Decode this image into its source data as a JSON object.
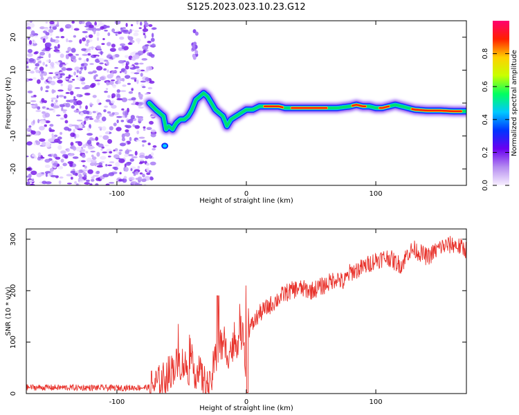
{
  "title": "S125.2023.023.10.23.G12",
  "colors": {
    "snr_line": "#e8312a",
    "spectrogram_noise": "#7a1fe8",
    "colorbar_stops": [
      "#f8f0ff",
      "#b58cf0",
      "#6a00f0",
      "#0033ff",
      "#00c8ff",
      "#00ff60",
      "#c8ff00",
      "#ffd000",
      "#ff2000",
      "#ff0070"
    ]
  },
  "chart_data": [
    {
      "type": "heatmap",
      "name": "spectrogram",
      "xlabel": "Height of straight line (km)",
      "ylabel": "Frequency (Hz)",
      "xlim": [
        -170,
        170
      ],
      "ylim": [
        -25,
        25
      ],
      "xticks": [
        -100,
        0,
        100
      ],
      "yticks": [
        -20,
        -10,
        0,
        10,
        20
      ],
      "colorbar": {
        "label": "Normalized spectral amplitude",
        "range": [
          0,
          1
        ],
        "ticks": [
          0.0,
          0.2,
          0.4,
          0.6,
          0.8
        ]
      },
      "noise_region_x": [
        -170,
        -75
      ],
      "ridge": {
        "x": [
          -75,
          -70,
          -67,
          -64,
          -62,
          -60,
          -57,
          -54,
          -51,
          -48,
          -45,
          -42,
          -39,
          -36,
          -33,
          -30,
          -27,
          -24,
          -21,
          -18,
          -15,
          -12,
          -8,
          -4,
          0,
          5,
          10,
          15,
          20,
          25,
          30,
          40,
          50,
          60,
          70,
          80,
          85,
          90,
          95,
          100,
          105,
          110,
          115,
          120,
          125,
          130,
          140,
          150,
          160,
          170
        ],
        "y": [
          0,
          -2,
          -3,
          -4,
          -8,
          -7,
          -8,
          -6,
          -5,
          -5,
          -4,
          -2,
          1,
          2,
          3,
          2,
          0,
          -2,
          -3,
          -4,
          -7,
          -5,
          -4,
          -3,
          -2,
          -2,
          -1,
          -1,
          -1,
          -1,
          -1.5,
          -1.5,
          -1.5,
          -1.5,
          -1.5,
          -1,
          -0.5,
          -1,
          -1,
          -1.5,
          -1.5,
          -1,
          -0.5,
          -1,
          -1.5,
          -2,
          -2.3,
          -2.3,
          -2.5,
          -2.5
        ]
      }
    },
    {
      "type": "line",
      "name": "snr",
      "xlabel": "Height of straight line (km)",
      "ylabel": "SNR (10 * v/v)",
      "xlim": [
        -170,
        170
      ],
      "ylim": [
        0,
        320
      ],
      "xticks": [
        -100,
        0,
        100
      ],
      "yticks": [
        0,
        100,
        200,
        300
      ],
      "trend": {
        "x": [
          -170,
          -100,
          -75,
          -65,
          -60,
          -55,
          -50,
          -45,
          -40,
          -35,
          -32,
          -28,
          -25,
          -20,
          -15,
          -10,
          -5,
          -2,
          0,
          2,
          5,
          10,
          20,
          30,
          40,
          50,
          60,
          70,
          75,
          80,
          85,
          90,
          100,
          110,
          115,
          120,
          125,
          130,
          140,
          150,
          160,
          170
        ],
        "y": [
          12,
          11,
          12,
          25,
          40,
          55,
          60,
          50,
          45,
          35,
          20,
          8,
          60,
          95,
          80,
          90,
          115,
          120,
          25,
          125,
          135,
          155,
          175,
          195,
          205,
          200,
          210,
          225,
          215,
          235,
          240,
          245,
          260,
          265,
          255,
          250,
          275,
          280,
          265,
          285,
          290,
          280
        ]
      },
      "noise_amplitude": [
        6,
        35,
        18
      ]
    }
  ]
}
